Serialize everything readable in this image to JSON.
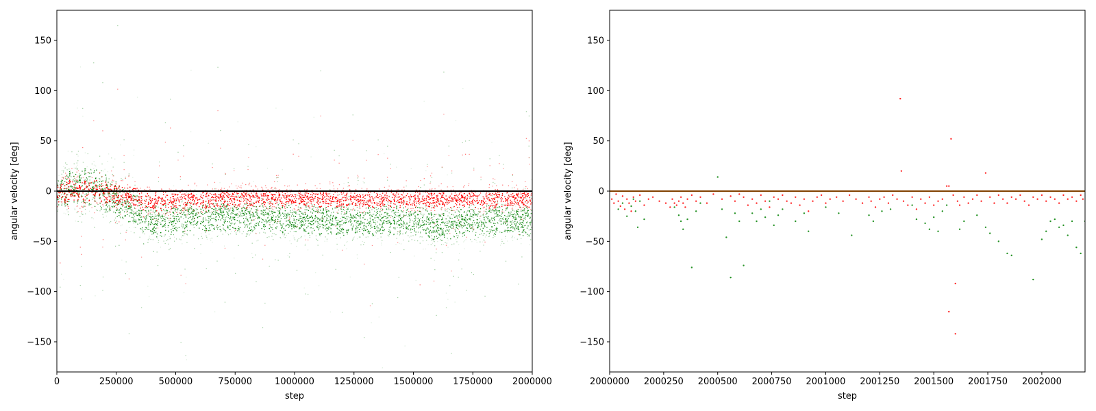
{
  "colors": {
    "series_a": "#ff0000",
    "series_b": "#008000",
    "zero_line": "#000000",
    "axes": "#000000"
  },
  "chart_data": [
    {
      "type": "scatter",
      "title": "",
      "xlabel": "step",
      "ylabel": "angular velocity [deg]",
      "xlim": [
        0,
        2000000
      ],
      "ylim": [
        -180,
        180
      ],
      "xticks": [
        0,
        250000,
        500000,
        750000,
        1000000,
        1250000,
        1500000,
        1750000,
        2000000
      ],
      "xtick_labels": [
        "0",
        "250000",
        "500000",
        "750000",
        "1000000",
        "1250000",
        "1500000",
        "1750000",
        "2000000"
      ],
      "yticks": [
        -150,
        -100,
        -50,
        0,
        50,
        100,
        150
      ],
      "ytick_labels": [
        "−150",
        "−100",
        "−50",
        "0",
        "50",
        "100",
        "150"
      ],
      "grid": false,
      "legend": "none",
      "reference_line": {
        "y": 0,
        "color": "#000000"
      },
      "series": [
        {
          "color": "#008000",
          "approx_profile": [
            {
              "x": 0,
              "center": 0,
              "spread": 18
            },
            {
              "x": 100000,
              "center": 5,
              "spread": 25
            },
            {
              "x": 200000,
              "center": 0,
              "spread": 25
            },
            {
              "x": 300000,
              "center": -15,
              "spread": 20
            },
            {
              "x": 400000,
              "center": -30,
              "spread": 20
            },
            {
              "x": 600000,
              "center": -25,
              "spread": 18
            },
            {
              "x": 800000,
              "center": -25,
              "spread": 18
            },
            {
              "x": 1000000,
              "center": -28,
              "spread": 18
            },
            {
              "x": 1250000,
              "center": -30,
              "spread": 18
            },
            {
              "x": 1500000,
              "center": -28,
              "spread": 18
            },
            {
              "x": 1600000,
              "center": -35,
              "spread": 18
            },
            {
              "x": 1800000,
              "center": -28,
              "spread": 18
            },
            {
              "x": 2000000,
              "center": -30,
              "spread": 18
            }
          ]
        },
        {
          "color": "#ff0000",
          "approx_profile": [
            {
              "x": 0,
              "center": 0,
              "spread": 14
            },
            {
              "x": 200000,
              "center": 0,
              "spread": 14
            },
            {
              "x": 400000,
              "center": -10,
              "spread": 12
            },
            {
              "x": 800000,
              "center": -6,
              "spread": 10
            },
            {
              "x": 1200000,
              "center": -8,
              "spread": 10
            },
            {
              "x": 1600000,
              "center": -8,
              "spread": 10
            },
            {
              "x": 2000000,
              "center": -8,
              "spread": 10
            }
          ]
        }
      ]
    },
    {
      "type": "scatter",
      "title": "",
      "xlabel": "step",
      "ylabel": "angular velocity [deg]",
      "xlim": [
        2000000,
        2002200
      ],
      "ylim": [
        -180,
        180
      ],
      "xticks": [
        2000000,
        2000250,
        2000500,
        2000750,
        2001000,
        2001250,
        2001500,
        2001750,
        2002000
      ],
      "xtick_labels": [
        "2000000",
        "2000250",
        "2000500",
        "2000750",
        "2001000",
        "2001250",
        "2001500",
        "2001750",
        "2002000"
      ],
      "yticks": [
        -150,
        -100,
        -50,
        0,
        50,
        100,
        150
      ],
      "ytick_labels": [
        "−150",
        "−100",
        "−50",
        "0",
        "50",
        "100",
        "150"
      ],
      "grid": false,
      "legend": "none",
      "reference_line": {
        "y": 0,
        "colors": [
          "#ff0000",
          "#008000"
        ]
      },
      "series": [
        {
          "color": "#ff0000",
          "points": [
            [
              2000010,
              -8
            ],
            [
              2000020,
              -12
            ],
            [
              2000030,
              -3
            ],
            [
              2000040,
              -10
            ],
            [
              2000050,
              -15
            ],
            [
              2000060,
              -5
            ],
            [
              2000070,
              -18
            ],
            [
              2000080,
              -8
            ],
            [
              2000090,
              -12
            ],
            [
              2000100,
              -20
            ],
            [
              2000110,
              -6
            ],
            [
              2000120,
              -10
            ],
            [
              2000140,
              -4
            ],
            [
              2000160,
              -14
            ],
            [
              2000180,
              -8
            ],
            [
              2000200,
              -6
            ],
            [
              2000230,
              -10
            ],
            [
              2000260,
              -12
            ],
            [
              2000280,
              -16
            ],
            [
              2000290,
              -8
            ],
            [
              2000300,
              -12
            ],
            [
              2000310,
              -14
            ],
            [
              2000320,
              -10
            ],
            [
              2000330,
              -6
            ],
            [
              2000340,
              -12
            ],
            [
              2000350,
              -16
            ],
            [
              2000360,
              -8
            ],
            [
              2000380,
              -4
            ],
            [
              2000400,
              -10
            ],
            [
              2000420,
              -6
            ],
            [
              2000450,
              -12
            ],
            [
              2000480,
              -3
            ],
            [
              2000520,
              -8
            ],
            [
              2000560,
              -5
            ],
            [
              2000580,
              -10
            ],
            [
              2000600,
              -3
            ],
            [
              2000620,
              -6
            ],
            [
              2000640,
              -14
            ],
            [
              2000660,
              -8
            ],
            [
              2000680,
              -12
            ],
            [
              2000700,
              -4
            ],
            [
              2000720,
              -10
            ],
            [
              2000740,
              -16
            ],
            [
              2000760,
              -6
            ],
            [
              2000780,
              -8
            ],
            [
              2000800,
              -4
            ],
            [
              2000820,
              -10
            ],
            [
              2000840,
              -12
            ],
            [
              2000860,
              -6
            ],
            [
              2000880,
              -14
            ],
            [
              2000900,
              -8
            ],
            [
              2000920,
              -20
            ],
            [
              2000940,
              -10
            ],
            [
              2000960,
              -6
            ],
            [
              2000980,
              -4
            ],
            [
              2001000,
              -12
            ],
            [
              2001020,
              -8
            ],
            [
              2001050,
              -6
            ],
            [
              2001080,
              -10
            ],
            [
              2001110,
              -4
            ],
            [
              2001140,
              -8
            ],
            [
              2001170,
              -12
            ],
            [
              2001200,
              -6
            ],
            [
              2001210,
              -10
            ],
            [
              2001230,
              -16
            ],
            [
              2001250,
              -8
            ],
            [
              2001270,
              -6
            ],
            [
              2001290,
              -12
            ],
            [
              2001310,
              -4
            ],
            [
              2001330,
              -8
            ],
            [
              2001345,
              92
            ],
            [
              2001350,
              20
            ],
            [
              2001360,
              -10
            ],
            [
              2001380,
              -14
            ],
            [
              2001400,
              -6
            ],
            [
              2001420,
              -18
            ],
            [
              2001440,
              -8
            ],
            [
              2001460,
              -12
            ],
            [
              2001480,
              -6
            ],
            [
              2001500,
              -14
            ],
            [
              2001520,
              -10
            ],
            [
              2001540,
              -8
            ],
            [
              2001560,
              5
            ],
            [
              2001570,
              5
            ],
            [
              2001580,
              52
            ],
            [
              2001590,
              -4
            ],
            [
              2001600,
              -92
            ],
            [
              2001610,
              -10
            ],
            [
              2001620,
              -14
            ],
            [
              2001640,
              -6
            ],
            [
              2001660,
              -12
            ],
            [
              2001680,
              -8
            ],
            [
              2001700,
              -4
            ],
            [
              2001720,
              -10
            ],
            [
              2001740,
              18
            ],
            [
              2001760,
              -6
            ],
            [
              2001780,
              -12
            ],
            [
              2001800,
              -4
            ],
            [
              2001820,
              -8
            ],
            [
              2001840,
              -12
            ],
            [
              2001860,
              -6
            ],
            [
              2001880,
              -8
            ],
            [
              2001900,
              -4
            ],
            [
              2001920,
              -10
            ],
            [
              2001940,
              -14
            ],
            [
              2001960,
              -6
            ],
            [
              2001980,
              -8
            ],
            [
              2002000,
              -4
            ],
            [
              2002020,
              -10
            ],
            [
              2002040,
              -6
            ],
            [
              2002060,
              -8
            ],
            [
              2002080,
              -12
            ],
            [
              2002100,
              -4
            ],
            [
              2002120,
              -8
            ],
            [
              2002140,
              -6
            ],
            [
              2002160,
              -10
            ],
            [
              2002180,
              -4
            ],
            [
              2002190,
              -8
            ],
            [
              2001570,
              -120
            ],
            [
              2001600,
              -142
            ]
          ]
        },
        {
          "color": "#008000",
          "points": [
            [
              2000040,
              -18
            ],
            [
              2000060,
              -12
            ],
            [
              2000080,
              -25
            ],
            [
              2000100,
              -15
            ],
            [
              2000110,
              -8
            ],
            [
              2000120,
              -20
            ],
            [
              2000130,
              -36
            ],
            [
              2000140,
              -10
            ],
            [
              2000160,
              -28
            ],
            [
              2000300,
              -16
            ],
            [
              2000320,
              -24
            ],
            [
              2000330,
              -30
            ],
            [
              2000340,
              -38
            ],
            [
              2000360,
              -28
            ],
            [
              2000380,
              -76
            ],
            [
              2000400,
              -20
            ],
            [
              2000420,
              -12
            ],
            [
              2000500,
              14
            ],
            [
              2000520,
              -18
            ],
            [
              2000540,
              -46
            ],
            [
              2000560,
              -86
            ],
            [
              2000580,
              -22
            ],
            [
              2000600,
              -30
            ],
            [
              2000620,
              -74
            ],
            [
              2000660,
              -22
            ],
            [
              2000680,
              -30
            ],
            [
              2000700,
              -18
            ],
            [
              2000720,
              -26
            ],
            [
              2000740,
              -10
            ],
            [
              2000760,
              -34
            ],
            [
              2000780,
              -24
            ],
            [
              2000800,
              -18
            ],
            [
              2000860,
              -30
            ],
            [
              2000900,
              -22
            ],
            [
              2000920,
              -40
            ],
            [
              2001000,
              -16
            ],
            [
              2001060,
              -22
            ],
            [
              2001120,
              -44
            ],
            [
              2001200,
              -24
            ],
            [
              2001220,
              -30
            ],
            [
              2001260,
              -20
            ],
            [
              2001300,
              -18
            ],
            [
              2001400,
              -14
            ],
            [
              2001420,
              -28
            ],
            [
              2001460,
              -32
            ],
            [
              2001480,
              -38
            ],
            [
              2001500,
              -26
            ],
            [
              2001520,
              -40
            ],
            [
              2001540,
              -20
            ],
            [
              2001560,
              -14
            ],
            [
              2001620,
              -38
            ],
            [
              2001640,
              -30
            ],
            [
              2001700,
              -24
            ],
            [
              2001740,
              -36
            ],
            [
              2001760,
              -42
            ],
            [
              2001800,
              -50
            ],
            [
              2001840,
              -62
            ],
            [
              2001860,
              -64
            ],
            [
              2001960,
              -88
            ],
            [
              2002000,
              -48
            ],
            [
              2002020,
              -40
            ],
            [
              2002040,
              -30
            ],
            [
              2002060,
              -28
            ],
            [
              2002080,
              -36
            ],
            [
              2002100,
              -34
            ],
            [
              2002120,
              -44
            ],
            [
              2002140,
              -30
            ],
            [
              2002160,
              -56
            ],
            [
              2002180,
              -62
            ],
            [
              2002200,
              -30
            ]
          ]
        }
      ]
    }
  ]
}
